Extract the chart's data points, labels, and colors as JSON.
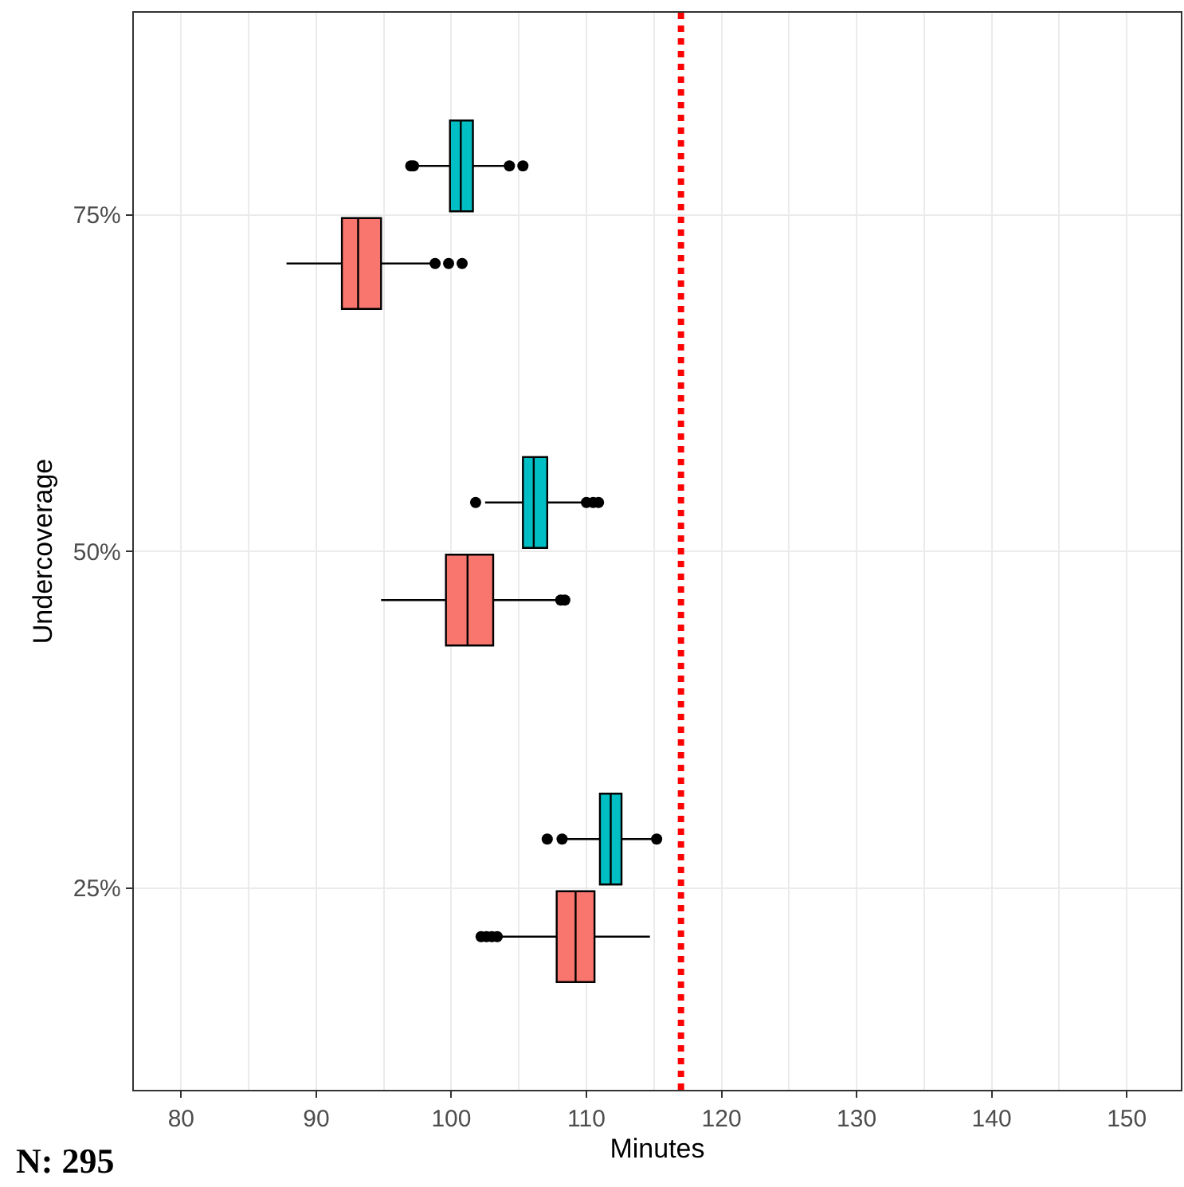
{
  "chart_data": {
    "type": "box",
    "orientation": "horizontal",
    "xlabel": "Minutes",
    "ylabel": "Undercoverage",
    "categories": [
      "75%",
      "50%",
      "25%"
    ],
    "xlim": [
      76.5,
      154
    ],
    "xticks": [
      80,
      90,
      100,
      110,
      120,
      130,
      140,
      150
    ],
    "grid": true,
    "series": [
      {
        "color": "#f8766d",
        "boxes": [
          {
            "low": 87.8,
            "q1": 91.9,
            "median": 93.1,
            "q3": 94.8,
            "high": 98.6,
            "outliers": [
              98.8,
              99.8,
              100.8
            ]
          },
          {
            "low": 94.8,
            "q1": 99.6,
            "median": 101.2,
            "q3": 103.1,
            "high": 107.8,
            "outliers": [
              108.1,
              108.4
            ]
          },
          {
            "low": 103.6,
            "q1": 107.8,
            "median": 109.2,
            "q3": 110.6,
            "high": 114.7,
            "outliers": [
              102.2,
              102.6,
              103.0,
              103.4
            ]
          }
        ]
      },
      {
        "color": "#00bfc4",
        "boxes": [
          {
            "low": 97.5,
            "q1": 99.9,
            "median": 100.7,
            "q3": 101.6,
            "high": 104,
            "outliers": [
              97.0,
              97.2,
              104.3,
              105.3
            ]
          },
          {
            "low": 102.5,
            "q1": 105.3,
            "median": 106.1,
            "q3": 107.1,
            "high": 109.7,
            "outliers": [
              101.8,
              110.0,
              110.5,
              110.9
            ]
          },
          {
            "low": 108.4,
            "q1": 111,
            "median": 111.8,
            "q3": 112.6,
            "high": 114.9,
            "outliers": [
              107.1,
              108.2,
              115.2
            ]
          }
        ]
      }
    ],
    "ref_lines": [
      {
        "axis": "x",
        "value": 117,
        "color": "#ff0000",
        "line_style": "dotted"
      }
    ],
    "annotations": [
      "N: 295"
    ]
  }
}
